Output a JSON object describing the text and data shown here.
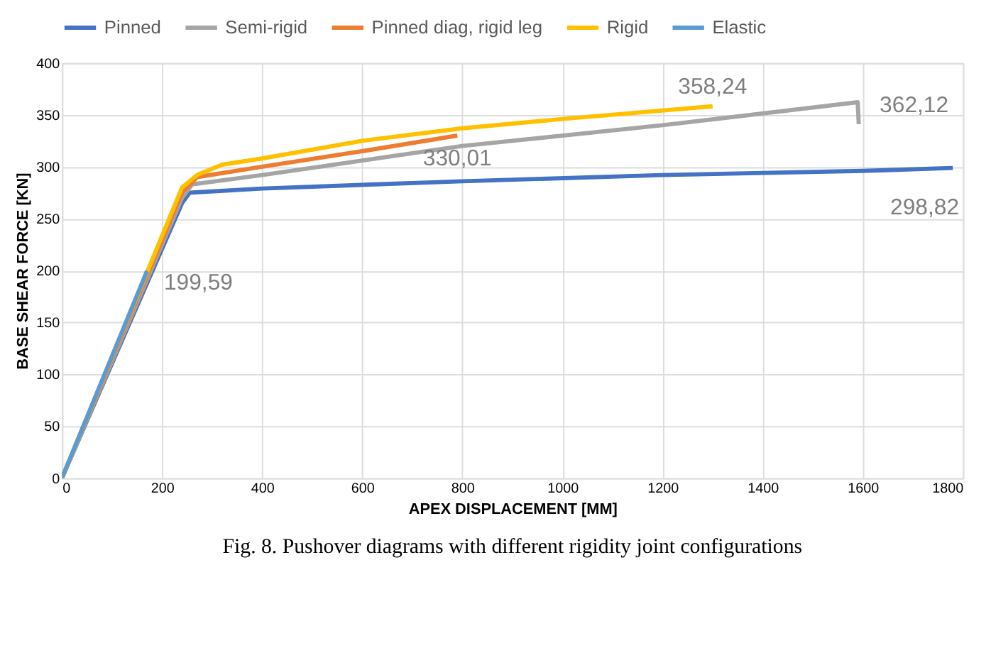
{
  "chart_data": {
    "type": "line",
    "title": "Fig. 8. Pushover diagrams with different rigidity joint configurations",
    "xlabel": "APEX DISPLACEMENT [MM]",
    "ylabel": "BASE SHEAR FORCE [KN]",
    "xlim": [
      0,
      1800
    ],
    "xticks": [
      0,
      200,
      400,
      600,
      800,
      1000,
      1200,
      1400,
      1600,
      1800
    ],
    "ylim": [
      0,
      400
    ],
    "yticks": [
      0,
      50,
      100,
      150,
      200,
      250,
      300,
      350,
      400
    ],
    "grid": true,
    "legend": "top",
    "marker": "none",
    "line_style": "solid",
    "series": [
      {
        "name": "Pinned",
        "color": "#4472c4",
        "x": [
          0,
          240,
          255,
          400,
          800,
          1200,
          1600,
          1780
        ],
        "values": [
          0,
          265,
          275,
          279,
          286,
          292,
          296,
          298.82
        ]
      },
      {
        "name": "Semi-rigid",
        "color": "#a5a5a5",
        "x": [
          0,
          240,
          260,
          400,
          800,
          1200,
          1590,
          1592
        ],
        "values": [
          0,
          270,
          283,
          292,
          320,
          340,
          362.12,
          341
        ]
      },
      {
        "name": "Pinned diag, rigid leg",
        "color": "#ed7d31",
        "x": [
          0,
          240,
          270,
          400,
          600,
          790
        ],
        "values": [
          0,
          275,
          290,
          300,
          315,
          330.01
        ]
      },
      {
        "name": "Rigid",
        "color": "#ffc000",
        "x": [
          0,
          240,
          270,
          320,
          400,
          600,
          800,
          1000,
          1300
        ],
        "values": [
          0,
          280,
          292,
          302,
          308,
          325,
          337,
          346,
          358.24
        ]
      },
      {
        "name": "Elastic",
        "color": "#5b9bd5",
        "x": [
          0,
          170
        ],
        "values": [
          0,
          199.59
        ]
      }
    ],
    "annotations": [
      {
        "text": "199,59",
        "x": 170,
        "y": 199.59
      },
      {
        "text": "330,01",
        "x": 790,
        "y": 330.01
      },
      {
        "text": "358,24",
        "x": 1300,
        "y": 358.24
      },
      {
        "text": "362,12",
        "x": 1590,
        "y": 362.12
      },
      {
        "text": "298,82",
        "x": 1780,
        "y": 298.82
      }
    ]
  }
}
